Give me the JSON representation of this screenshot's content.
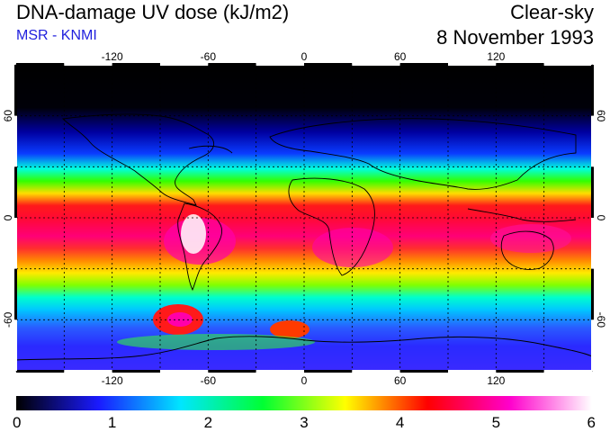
{
  "header": {
    "title": "DNA-damage UV dose (kJ/m2)",
    "subtitle": "MSR - KNMI",
    "condition": "Clear-sky",
    "date": "8 November 1993"
  },
  "map": {
    "projection": "equirectangular",
    "lon_range": [
      -180,
      180
    ],
    "lat_range": [
      -90,
      90
    ],
    "lon_ticks": [
      "-120",
      "-60",
      "0",
      "60",
      "120"
    ],
    "lat_ticks": [
      "60",
      "0",
      "-60"
    ],
    "gridlines": "dashed, every 30 degrees",
    "coastlines": true
  },
  "colorbar": {
    "min": 0,
    "max": 6,
    "labels": [
      "0",
      "1",
      "2",
      "3",
      "4",
      "5",
      "6"
    ],
    "colors": [
      "#000000",
      "#1a1aff",
      "#00e6ff",
      "#00ff33",
      "#ffff00",
      "#ff0000",
      "#ff00cc",
      "#ffffff"
    ]
  }
}
